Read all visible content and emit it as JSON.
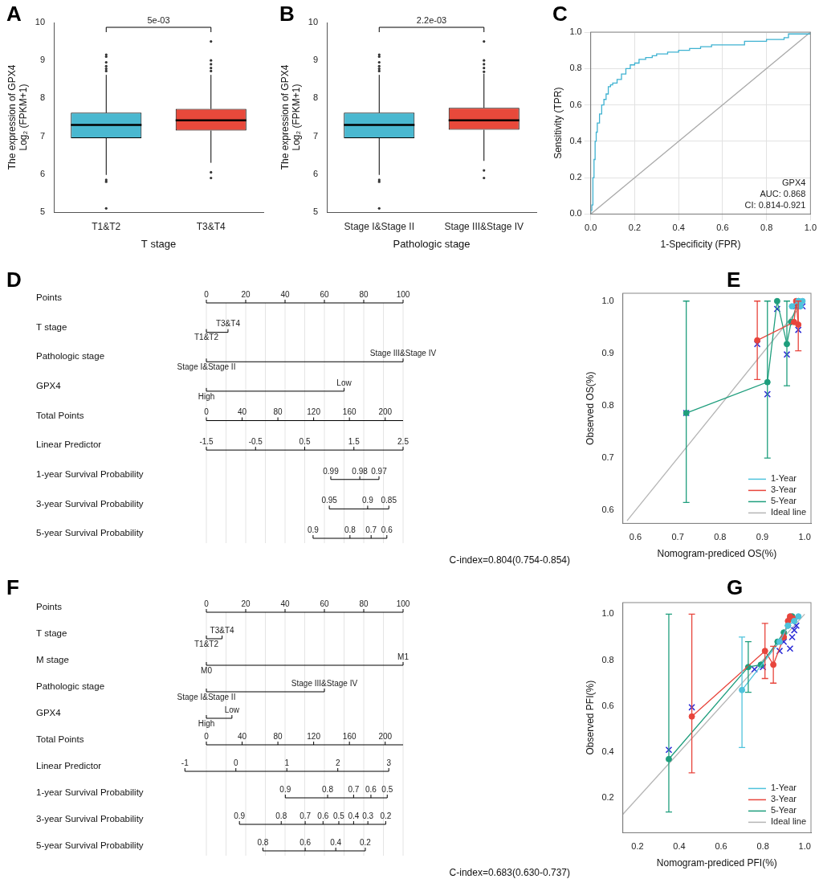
{
  "chart_data": [
    {
      "panel": "A",
      "type": "boxplot",
      "categories": [
        "T1&T2",
        "T3&T4"
      ],
      "colors": [
        "#4ab8d0",
        "#e8493b"
      ],
      "boxes": [
        {
          "whisker_low": 5.98,
          "q1": 6.95,
          "median": 7.3,
          "q3": 7.62,
          "whisker_high": 8.62,
          "outliers": [
            9.15,
            9.1,
            8.95,
            8.85,
            8.78,
            8.72,
            5.85,
            5.8,
            5.1
          ]
        },
        {
          "whisker_low": 6.3,
          "q1": 7.15,
          "median": 7.42,
          "q3": 7.72,
          "whisker_high": 8.62,
          "outliers": [
            9.5,
            9.0,
            8.9,
            8.8,
            8.72,
            6.05,
            5.9
          ]
        }
      ],
      "ylim": [
        5,
        10
      ],
      "yticks": [
        5,
        6,
        7,
        8,
        9,
        10
      ],
      "grid": false,
      "x_label": "T stage",
      "y_label": [
        "The expression of GPX4",
        "Log₂ (FPKM+1)"
      ],
      "annotation": "5e-03"
    },
    {
      "panel": "B",
      "type": "boxplot",
      "categories": [
        "Stage I&Stage II",
        "Stage III&Stage IV"
      ],
      "colors": [
        "#4ab8d0",
        "#e8493b"
      ],
      "boxes": [
        {
          "whisker_low": 5.98,
          "q1": 6.95,
          "median": 7.3,
          "q3": 7.62,
          "whisker_high": 8.62,
          "outliers": [
            9.15,
            9.1,
            8.95,
            8.85,
            8.78,
            8.72,
            5.85,
            5.8,
            5.1
          ]
        },
        {
          "whisker_low": 6.35,
          "q1": 7.17,
          "median": 7.42,
          "q3": 7.75,
          "whisker_high": 8.65,
          "outliers": [
            9.5,
            9.0,
            8.9,
            8.8,
            8.7,
            6.1,
            5.9
          ]
        }
      ],
      "ylim": [
        5,
        10
      ],
      "yticks": [
        5,
        6,
        7,
        8,
        9,
        10
      ],
      "grid": false,
      "x_label": "Pathologic stage",
      "y_label": [
        "The expression of GPX4",
        "Log₂ (FPKM+1)"
      ],
      "annotation": "2.2e-03"
    },
    {
      "panel": "C",
      "type": "line",
      "series": [
        {
          "color": "#3fb2d1",
          "marker": "none",
          "line_style": "step",
          "x": [
            0,
            0,
            0.005,
            0.01,
            0.01,
            0.015,
            0.02,
            0.025,
            0.03,
            0.04,
            0.05,
            0.06,
            0.07,
            0.08,
            0.09,
            0.1,
            0.12,
            0.14,
            0.16,
            0.18,
            0.2,
            0.22,
            0.25,
            0.28,
            0.3,
            0.35,
            0.4,
            0.45,
            0.5,
            0.55,
            0.6,
            0.7,
            0.8,
            0.88,
            0.9,
            1.0
          ],
          "values": [
            0,
            0.02,
            0.05,
            0.12,
            0.2,
            0.3,
            0.4,
            0.45,
            0.5,
            0.55,
            0.6,
            0.63,
            0.66,
            0.7,
            0.71,
            0.72,
            0.74,
            0.77,
            0.8,
            0.82,
            0.83,
            0.85,
            0.86,
            0.87,
            0.88,
            0.89,
            0.9,
            0.91,
            0.92,
            0.93,
            0.93,
            0.95,
            0.96,
            0.97,
            0.99,
            1.0
          ]
        },
        {
          "color": "#a9a9a9",
          "marker": "none",
          "line_style": "solid",
          "x": [
            0,
            1
          ],
          "values": [
            0,
            1
          ]
        }
      ],
      "xlim": [
        0,
        1
      ],
      "ylim": [
        0,
        1
      ],
      "xticks": [
        {
          "value": 0,
          "label": "0.0"
        },
        0.2,
        0.4,
        0.6,
        0.8,
        {
          "value": 1,
          "label": "1.0"
        }
      ],
      "yticks": [
        {
          "value": 0,
          "label": "0.0"
        },
        0.2,
        0.4,
        0.6,
        0.8,
        {
          "value": 1,
          "label": "1.0"
        }
      ],
      "grid": true,
      "x_label": "1-Specificity (FPR)",
      "y_label": "Sensitivity (TPR)",
      "annotation": [
        "GPX4",
        "AUC: 0.868",
        "CI: 0.814-0.921"
      ]
    },
    {
      "panel": "D",
      "type": "nomogram",
      "rows": [
        {
          "label": "Points",
          "kind": "points",
          "lim": [
            0,
            100
          ],
          "ticks": [
            0,
            20,
            40,
            60,
            80,
            100
          ]
        },
        {
          "label": "T stage",
          "kind": "factor",
          "levels": [
            {
              "label": "T1&T2",
              "points": 0
            },
            {
              "label": "T3&T4",
              "points": 11
            }
          ]
        },
        {
          "label": "Pathologic stage",
          "kind": "factor",
          "levels": [
            {
              "label": "Stage I&Stage II",
              "points": 0
            },
            {
              "label": "Stage III&Stage IV",
              "points": 100
            }
          ]
        },
        {
          "label": "GPX4",
          "kind": "factor",
          "levels": [
            {
              "label": "High",
              "points": 0
            },
            {
              "label": "Low",
              "points": 70
            }
          ]
        },
        {
          "label": "Total Points",
          "kind": "total",
          "lim": [
            0,
            220
          ],
          "ticks": [
            0,
            40,
            80,
            120,
            160,
            200
          ]
        },
        {
          "label": "Linear Predictor",
          "kind": "linear_predictor",
          "lim": [
            -1.5,
            2.5
          ],
          "total_points_at_lim": [
            0,
            220
          ],
          "ticks": [
            -1.5,
            -0.5,
            0.5,
            1.5,
            2.5
          ]
        },
        {
          "label": "1-year Survival Probability",
          "kind": "survival",
          "ticks": [
            {
              "value": 0.99,
              "lp": 1.03
            },
            {
              "value": 0.98,
              "lp": 1.62
            },
            {
              "value": 0.97,
              "lp": 2.01
            }
          ]
        },
        {
          "label": "3-year Survival Probability",
          "kind": "survival",
          "ticks": [
            {
              "value": 0.95,
              "lp": 1.0
            },
            {
              "value": 0.9,
              "lp": 1.78
            },
            {
              "value": 0.85,
              "lp": 2.21
            }
          ]
        },
        {
          "label": "5-year Survival Probability",
          "kind": "survival",
          "ticks": [
            {
              "value": 0.9,
              "lp": 0.67
            },
            {
              "value": 0.8,
              "lp": 1.42
            },
            {
              "value": 0.7,
              "lp": 1.85
            },
            {
              "value": 0.6,
              "lp": 2.17
            }
          ]
        }
      ],
      "c_index": "C-index=0.804(0.754-0.854)"
    },
    {
      "panel": "E",
      "type": "line",
      "series": [
        {
          "name": "1-Year",
          "color": "#4fc3dc",
          "marker": "circle",
          "line_style": "solid",
          "x": [
            0.97,
            0.985,
            0.99,
            0.995
          ],
          "values": [
            0.99,
            1.0,
            0.99,
            1.0
          ]
        },
        {
          "name": "3-Year",
          "color": "#e8453c",
          "marker": "circle",
          "line_style": "solid",
          "x": [
            0.888,
            0.975,
            0.98,
            0.985
          ],
          "values": [
            0.925,
            0.96,
            1.0,
            0.955
          ],
          "errors": [
            [
              0.85,
              1.0
            ],
            null,
            null,
            [
              0.905,
              1.0
            ]
          ]
        },
        {
          "name": "5-Year",
          "color": "#1f9e7d",
          "marker": "circle",
          "line_style": "solid",
          "x": [
            0.72,
            0.912,
            0.935,
            0.958,
            0.968,
            0.985
          ],
          "values": [
            0.786,
            0.845,
            1.0,
            0.918,
            0.96,
            1.0
          ],
          "errors": [
            [
              0.615,
              1.0
            ],
            [
              0.7,
              1.0
            ],
            null,
            [
              0.838,
              1.0
            ],
            null,
            null
          ]
        },
        {
          "color": "#2b2bd6",
          "marker": "cross",
          "line_style": "none",
          "x": [
            0.72,
            0.888,
            0.912,
            0.935,
            0.958,
            0.98,
            0.985,
            0.995
          ],
          "values": [
            0.786,
            0.918,
            0.822,
            0.985,
            0.898,
            0.99,
            0.945,
            0.99
          ]
        },
        {
          "name": "Ideal line",
          "color": "#b5b5b5",
          "marker": "none",
          "line_style": "solid",
          "x": [
            0.58,
            1.0
          ],
          "values": [
            0.58,
            1.0
          ]
        }
      ],
      "xlim": [
        0.57,
        1.015
      ],
      "ylim": [
        0.575,
        1.015
      ],
      "xticks": [
        0.6,
        0.7,
        0.8,
        0.9,
        {
          "value": 1,
          "label": "1.0"
        }
      ],
      "yticks": [
        0.6,
        0.7,
        0.8,
        0.9,
        {
          "value": 1,
          "label": "1.0"
        }
      ],
      "grid": false,
      "legend": "lower right",
      "x_label": "Nomogram-prediced OS(%)",
      "y_label": "Observed OS(%)"
    },
    {
      "panel": "F",
      "type": "nomogram",
      "rows": [
        {
          "label": "Points",
          "kind": "points",
          "lim": [
            0,
            100
          ],
          "ticks": [
            0,
            20,
            40,
            60,
            80,
            100
          ]
        },
        {
          "label": "T stage",
          "kind": "factor",
          "levels": [
            {
              "label": "T1&T2",
              "points": 0
            },
            {
              "label": "T3&T4",
              "points": 8
            }
          ]
        },
        {
          "label": "M stage",
          "kind": "factor",
          "levels": [
            {
              "label": "M0",
              "points": 0
            },
            {
              "label": "M1",
              "points": 100
            }
          ]
        },
        {
          "label": "Pathologic stage",
          "kind": "factor",
          "levels": [
            {
              "label": "Stage I&Stage II",
              "points": 0
            },
            {
              "label": "Stage III&Stage IV",
              "points": 60
            }
          ]
        },
        {
          "label": "GPX4",
          "kind": "factor",
          "levels": [
            {
              "label": "High",
              "points": 0
            },
            {
              "label": "Low",
              "points": 13
            }
          ]
        },
        {
          "label": "Total Points",
          "kind": "total",
          "lim": [
            0,
            220
          ],
          "ticks": [
            0,
            40,
            80,
            120,
            160,
            200
          ]
        },
        {
          "label": "Linear Predictor",
          "kind": "linear_predictor",
          "lim": [
            -1,
            3
          ],
          "total_points_at_lim": [
            -24,
            204
          ],
          "ticks": [
            -1,
            0,
            1,
            2,
            3
          ]
        },
        {
          "label": "1-year Survival Probability",
          "kind": "survival",
          "ticks": [
            {
              "value": 0.9,
              "lp": 0.97
            },
            {
              "value": 0.8,
              "lp": 1.8
            },
            {
              "value": 0.7,
              "lp": 2.31
            },
            {
              "value": 0.6,
              "lp": 2.65
            },
            {
              "value": 0.5,
              "lp": 2.97
            }
          ]
        },
        {
          "label": "3-year Survival Probability",
          "kind": "survival",
          "ticks": [
            {
              "value": 0.9,
              "lp": 0.07
            },
            {
              "value": 0.8,
              "lp": 0.89
            },
            {
              "value": 0.7,
              "lp": 1.36
            },
            {
              "value": 0.6,
              "lp": 1.71
            },
            {
              "value": 0.5,
              "lp": 2.02
            },
            {
              "value": 0.4,
              "lp": 2.31
            },
            {
              "value": 0.3,
              "lp": 2.59
            },
            {
              "value": 0.2,
              "lp": 2.94
            }
          ]
        },
        {
          "label": "5-year Survival Probability",
          "kind": "survival",
          "ticks": [
            {
              "value": 0.8,
              "lp": 0.53
            },
            {
              "value": 0.6,
              "lp": 1.36
            },
            {
              "value": 0.4,
              "lp": 1.96
            },
            {
              "value": 0.2,
              "lp": 2.54
            }
          ]
        }
      ],
      "c_index": "C-index=0.683(0.630-0.737)"
    },
    {
      "panel": "G",
      "type": "line",
      "series": [
        {
          "name": "1-Year",
          "color": "#4fc3dc",
          "marker": "circle",
          "line_style": "solid",
          "x": [
            0.7,
            0.88,
            0.92,
            0.95,
            0.97
          ],
          "values": [
            0.67,
            0.88,
            0.95,
            0.97,
            0.99
          ],
          "errors": [
            [
              0.42,
              0.9
            ],
            null,
            null,
            null,
            null
          ]
        },
        {
          "name": "3-Year",
          "color": "#e8453c",
          "marker": "circle",
          "line_style": "solid",
          "x": [
            0.46,
            0.81,
            0.85,
            0.9,
            0.92,
            0.93,
            0.95
          ],
          "values": [
            0.555,
            0.84,
            0.78,
            0.9,
            0.97,
            0.99,
            0.98
          ],
          "errors": [
            [
              0.31,
              1.0
            ],
            [
              0.72,
              0.96
            ],
            [
              0.7,
              0.86
            ],
            null,
            null,
            null,
            null
          ]
        },
        {
          "name": "5-Year",
          "color": "#1f9e7d",
          "marker": "circle",
          "line_style": "solid",
          "x": [
            0.35,
            0.73,
            0.79,
            0.87,
            0.9,
            0.92,
            0.93,
            0.94
          ],
          "values": [
            0.37,
            0.77,
            0.78,
            0.88,
            0.92,
            0.95,
            0.98,
            0.99
          ],
          "errors": [
            [
              0.14,
              1.0
            ],
            [
              0.66,
              0.88
            ],
            null,
            null,
            null,
            null,
            null,
            null
          ]
        },
        {
          "color": "#2b2bd6",
          "marker": "cross",
          "line_style": "none",
          "x": [
            0.35,
            0.46,
            0.76,
            0.8,
            0.88,
            0.9,
            0.93,
            0.94,
            0.95,
            0.96
          ],
          "values": [
            0.41,
            0.595,
            0.76,
            0.77,
            0.84,
            0.88,
            0.85,
            0.9,
            0.93,
            0.95
          ]
        },
        {
          "name": "Ideal line",
          "color": "#b5b5b5",
          "marker": "none",
          "line_style": "solid",
          "x": [
            0.13,
            1.0
          ],
          "values": [
            0.13,
            1.0
          ]
        }
      ],
      "xlim": [
        0.13,
        1.03
      ],
      "ylim": [
        0.05,
        1.05
      ],
      "xticks": [
        0.2,
        0.4,
        0.6,
        0.8,
        {
          "value": 1,
          "label": "1.0"
        }
      ],
      "yticks": [
        0.2,
        0.4,
        0.6,
        0.8,
        {
          "value": 1,
          "label": "1.0"
        }
      ],
      "grid": false,
      "legend": "lower right",
      "x_label": "Nomogram-prediced PFI(%)",
      "y_label": "Observed PFI(%)"
    }
  ]
}
